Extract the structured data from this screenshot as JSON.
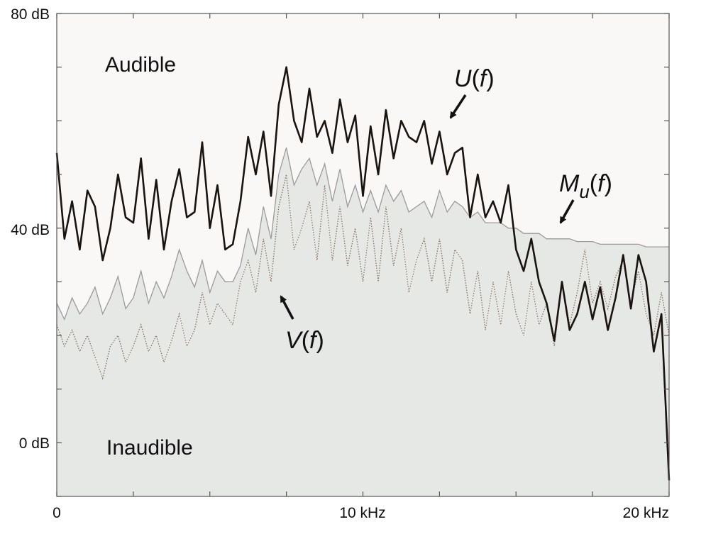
{
  "chart_data": {
    "type": "line",
    "title": "",
    "xlabel": "",
    "ylabel": "",
    "xlim": [
      0,
      20
    ],
    "ylim": [
      -10,
      80
    ],
    "x_unit": "kHz",
    "grid": false,
    "x_ticks": [
      {
        "value": 0,
        "label": "0"
      },
      {
        "value": 10,
        "label": "10 kHz"
      },
      {
        "value": 20,
        "label": "20 kHz"
      }
    ],
    "y_ticks": [
      {
        "value": 80,
        "label": "80 dB"
      },
      {
        "value": 40,
        "label": "40 dB"
      },
      {
        "value": 0,
        "label": "0 dB"
      }
    ],
    "regions": {
      "above": "Audible",
      "below": "Inaudible"
    },
    "colors": {
      "masking_fill": "#e6e8e6",
      "masking_line": "#9a9a9a",
      "signal": "#1a1410",
      "residual": "#8a7560",
      "audible_bg": "#faf8f6",
      "frame": "#555555"
    },
    "series": [
      {
        "label": "U(f)",
        "style": "thick",
        "x": [
          0,
          0.25,
          0.5,
          0.75,
          1,
          1.25,
          1.5,
          1.75,
          2,
          2.25,
          2.5,
          2.75,
          3,
          3.25,
          3.5,
          3.75,
          4,
          4.25,
          4.5,
          4.75,
          5,
          5.25,
          5.5,
          5.75,
          6,
          6.25,
          6.5,
          6.75,
          7,
          7.25,
          7.5,
          7.75,
          8,
          8.25,
          8.5,
          8.75,
          9,
          9.25,
          9.5,
          9.75,
          10,
          10.25,
          10.5,
          10.75,
          11,
          11.25,
          11.5,
          11.75,
          12,
          12.25,
          12.5,
          12.75,
          13,
          13.25,
          13.5,
          13.75,
          14,
          14.25,
          14.5,
          14.75,
          15,
          15.25,
          15.5,
          15.75,
          16,
          16.25,
          16.5,
          16.75,
          17,
          17.25,
          17.5,
          17.75,
          18,
          18.25,
          18.5,
          18.75,
          19,
          19.25,
          19.5,
          19.75,
          20
        ],
        "y": [
          54,
          38,
          45,
          36,
          47,
          44,
          34,
          40,
          50,
          42,
          41,
          53,
          38,
          49,
          36,
          45,
          51,
          42,
          43,
          56,
          40,
          48,
          36,
          37,
          45,
          57,
          50,
          58,
          46,
          63,
          70,
          60,
          56,
          66,
          57,
          60,
          54,
          64,
          56,
          61,
          46,
          59,
          50,
          62,
          53,
          60,
          57,
          56,
          60,
          52,
          58,
          50,
          54,
          55,
          42,
          50,
          42,
          45,
          41,
          48,
          36,
          32,
          38,
          30,
          26,
          19,
          30,
          21,
          24,
          30,
          23,
          29,
          21,
          27,
          35,
          25,
          35,
          30,
          17,
          24,
          -7
        ]
      },
      {
        "label": "V(f)",
        "style": "dotted",
        "x": [
          0,
          0.25,
          0.5,
          0.75,
          1,
          1.25,
          1.5,
          1.75,
          2,
          2.25,
          2.5,
          2.75,
          3,
          3.25,
          3.5,
          3.75,
          4,
          4.25,
          4.5,
          4.75,
          5,
          5.25,
          5.5,
          5.75,
          6,
          6.25,
          6.5,
          6.75,
          7,
          7.25,
          7.5,
          7.75,
          8,
          8.25,
          8.5,
          8.75,
          9,
          9.25,
          9.5,
          9.75,
          10,
          10.25,
          10.5,
          10.75,
          11,
          11.25,
          11.5,
          11.75,
          12,
          12.25,
          12.5,
          12.75,
          13,
          13.25,
          13.5,
          13.75,
          14,
          14.25,
          14.5,
          14.75,
          15,
          15.25,
          15.5,
          15.75,
          16,
          16.25,
          16.5,
          16.75,
          17,
          17.25,
          17.5,
          17.75,
          18,
          18.25,
          18.5,
          18.75,
          19,
          19.25,
          19.5,
          19.75,
          20
        ],
        "y": [
          22,
          18,
          21,
          17,
          20,
          16,
          12,
          18,
          20,
          15,
          18,
          22,
          17,
          20,
          15,
          19,
          24,
          18,
          21,
          28,
          22,
          26,
          24,
          22,
          30,
          34,
          28,
          38,
          30,
          44,
          50,
          36,
          40,
          45,
          34,
          48,
          34,
          44,
          33,
          40,
          30,
          42,
          30,
          44,
          33,
          40,
          28,
          34,
          38,
          30,
          38,
          28,
          36,
          34,
          24,
          32,
          21,
          30,
          22,
          32,
          24,
          20,
          30,
          22,
          26,
          18,
          30,
          22,
          28,
          36,
          26,
          30,
          25,
          31,
          34,
          26,
          32,
          24,
          20,
          28,
          20
        ]
      },
      {
        "label": "Mu(f)",
        "style": "filled",
        "x": [
          0,
          0.25,
          0.5,
          0.75,
          1,
          1.25,
          1.5,
          1.75,
          2,
          2.25,
          2.5,
          2.75,
          3,
          3.25,
          3.5,
          3.75,
          4,
          4.25,
          4.5,
          4.75,
          5,
          5.25,
          5.5,
          5.75,
          6,
          6.25,
          6.5,
          6.75,
          7,
          7.25,
          7.5,
          7.75,
          8,
          8.25,
          8.5,
          8.75,
          9,
          9.25,
          9.5,
          9.75,
          10,
          10.25,
          10.5,
          10.75,
          11,
          11.25,
          11.5,
          11.75,
          12,
          12.25,
          12.5,
          12.75,
          13,
          13.25,
          13.5,
          13.75,
          14,
          14.25,
          14.5,
          14.75,
          15,
          15.25,
          15.5,
          15.75,
          16,
          16.25,
          16.5,
          16.75,
          17,
          17.25,
          17.5,
          17.75,
          18,
          18.25,
          18.5,
          18.75,
          19,
          19.25,
          19.5,
          19.75,
          20
        ],
        "y": [
          26,
          23,
          27,
          24,
          26,
          29,
          24,
          27,
          31,
          25,
          27,
          32,
          26,
          30,
          27,
          31,
          36,
          32,
          29,
          34,
          28,
          32,
          30,
          30,
          33,
          40,
          35,
          44,
          38,
          50,
          55,
          48,
          51,
          53,
          48,
          52,
          45,
          51,
          44,
          48,
          43,
          47,
          43,
          48,
          45,
          47,
          43,
          44,
          45,
          42,
          47,
          43,
          45,
          44,
          42,
          43,
          41,
          41,
          41,
          40,
          40,
          39,
          39,
          39,
          38,
          38,
          38,
          38,
          37.5,
          37.5,
          37.5,
          37,
          37,
          37,
          37,
          37,
          37,
          36.5,
          36.5,
          36.5,
          36.5
        ]
      }
    ],
    "annotations": [
      {
        "target": "U(f)",
        "text_main": "U",
        "text_var": "f"
      },
      {
        "target": "Mu(f)",
        "text_main": "M",
        "text_sub": "u",
        "text_var": "f"
      },
      {
        "target": "V(f)",
        "text_main": "V",
        "text_var": "f"
      }
    ]
  }
}
